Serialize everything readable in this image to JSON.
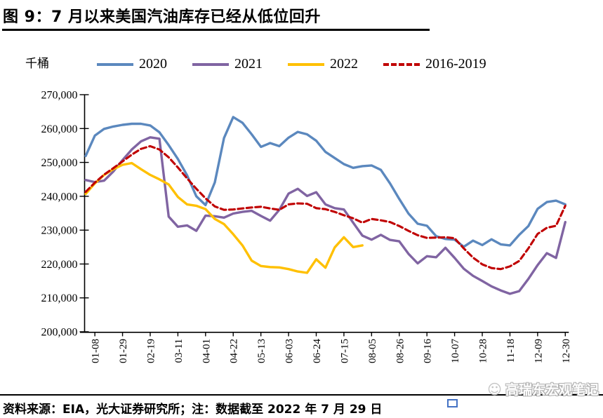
{
  "title": "图 9：7 月以来美国汽油库存已经从低位回升",
  "watermark": {
    "text": "高瑞东宏观笔记",
    "icon": "smiley-face-logo"
  },
  "footer": {
    "source_note": "资料来源：EIA，光大证券研究所；注：数据截至 2022 年 7 月 29 日"
  },
  "chart_data": {
    "type": "line",
    "ylabel": "千桶",
    "ylim": [
      200000,
      270000
    ],
    "y_tick_step": 10000,
    "y_tick_labels": [
      "270,000",
      "260,000",
      "250,000",
      "240,000",
      "230,000",
      "220,000",
      "210,000",
      "200,000"
    ],
    "x_tick_labels": [
      "01-08",
      "01-29",
      "02-19",
      "03-11",
      "04-01",
      "04-22",
      "05-13",
      "06-03",
      "06-24",
      "07-15",
      "08-05",
      "08-26",
      "09-16",
      "10-07",
      "10-28",
      "11-18",
      "12-09",
      "12-30"
    ],
    "x_first_tick_week_index": 1,
    "weeks_per_tick": 3,
    "total_weeks": 53,
    "grid": false,
    "legend_position": "top",
    "series": [
      {
        "name": "2020",
        "color": "#5B88BE",
        "dash": "solid",
        "values": [
          251900,
          257900,
          259900,
          260600,
          261100,
          261400,
          261400,
          260900,
          258900,
          255100,
          251000,
          246200,
          240000,
          237400,
          244100,
          257200,
          263400,
          261700,
          258300,
          254600,
          255700,
          254800,
          257300,
          259000,
          258300,
          256400,
          253100,
          251300,
          249500,
          248400,
          248900,
          249100,
          247800,
          243800,
          239200,
          234900,
          231900,
          231300,
          228200,
          227400,
          227200,
          225100,
          226900,
          225600,
          227300,
          225800,
          225500,
          228600,
          231200,
          236300,
          238300,
          238700,
          237600
        ]
      },
      {
        "name": "2021",
        "color": "#8064A2",
        "dash": "solid",
        "values": [
          244800,
          244200,
          244600,
          247300,
          250700,
          253800,
          256200,
          257400,
          257000,
          234000,
          231000,
          231400,
          229800,
          234300,
          234100,
          233700,
          234900,
          235400,
          235700,
          234200,
          232800,
          236000,
          240800,
          242200,
          240100,
          241200,
          237600,
          236500,
          236100,
          232200,
          228400,
          227200,
          228600,
          227100,
          226700,
          223000,
          220200,
          222300,
          222000,
          224800,
          221800,
          218600,
          216500,
          215000,
          213400,
          212200,
          211200,
          212000,
          215600,
          219700,
          223200,
          221800,
          232400
        ]
      },
      {
        "name": "2022",
        "color": "#FFC000",
        "dash": "solid",
        "values": [
          240700,
          243800,
          246300,
          248000,
          249300,
          249800,
          248000,
          246300,
          245000,
          243500,
          239800,
          237600,
          237200,
          236200,
          233300,
          231800,
          228800,
          225500,
          221000,
          219400,
          219100,
          219000,
          218500,
          217800,
          217400,
          221400,
          218900,
          224900,
          227900,
          225000,
          225500
        ]
      },
      {
        "name": "2016-2019",
        "color": "#C00000",
        "dash": "dashed",
        "values": [
          241300,
          244000,
          246400,
          248300,
          250300,
          252300,
          254000,
          254800,
          253800,
          251500,
          248500,
          245300,
          242200,
          239400,
          237000,
          236000,
          236100,
          236400,
          236700,
          236900,
          236400,
          236000,
          237600,
          237900,
          237800,
          236500,
          236200,
          235400,
          234400,
          233500,
          232200,
          233300,
          232900,
          232400,
          231200,
          229800,
          228500,
          227700,
          227800,
          227900,
          227600,
          224600,
          221900,
          219900,
          218800,
          218500,
          219300,
          220900,
          224600,
          228900,
          230700,
          231300,
          237200
        ]
      }
    ]
  }
}
